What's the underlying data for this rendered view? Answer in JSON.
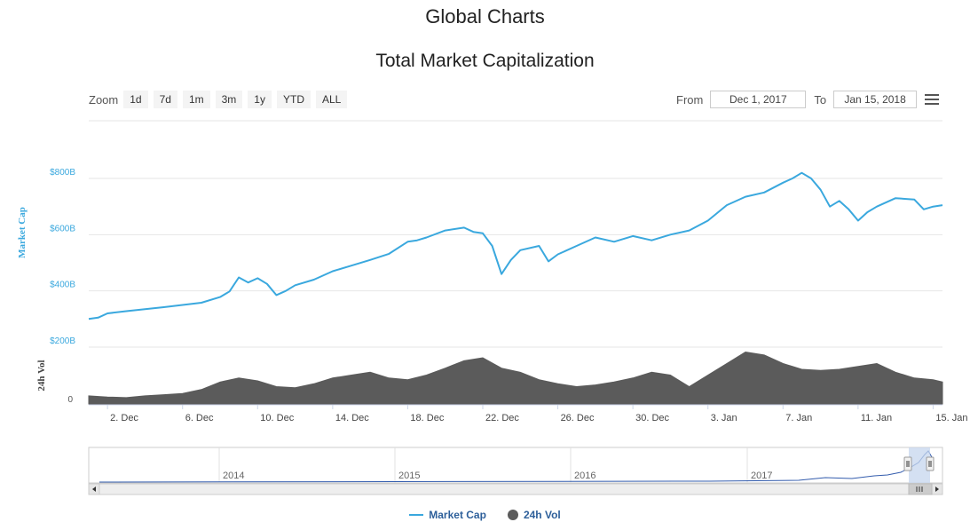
{
  "page": {
    "title": "Global Charts"
  },
  "zoom": {
    "label": "Zoom",
    "buttons": [
      "1d",
      "7d",
      "1m",
      "3m",
      "1y",
      "YTD",
      "ALL"
    ]
  },
  "range": {
    "from_label": "From",
    "from_value": "Dec 1, 2017",
    "to_label": "To",
    "to_value": "Jan 15, 2018"
  },
  "legend": {
    "market_cap": "Market Cap",
    "volume": "24h Vol"
  },
  "colors": {
    "market_cap": "#3aa8de",
    "volume": "#5b5b5b",
    "navigator_mask": "#c5d6ee"
  },
  "icons": {
    "menu": "hamburger-menu-icon"
  },
  "chart_data": {
    "type": "line",
    "title": "Total Market Capitalization",
    "market_cap_axis": {
      "label": "Market Cap",
      "ticks": [
        "$200B",
        "$400B",
        "$600B",
        "$800B"
      ],
      "tick_values": [
        200,
        400,
        600,
        800
      ],
      "unit": "billion USD"
    },
    "volume_axis": {
      "label": "24h Vol",
      "ticks": [
        "0"
      ]
    },
    "x_axis": {
      "tick_labels": [
        "2. Dec",
        "6. Dec",
        "10. Dec",
        "14. Dec",
        "18. Dec",
        "22. Dec",
        "26. Dec",
        "30. Dec",
        "3. Jan",
        "7. Jan",
        "11. Jan",
        "15. Jan"
      ],
      "tick_days": [
        1,
        5,
        9,
        13,
        17,
        21,
        25,
        29,
        33,
        37,
        41,
        45
      ],
      "range_days": [
        0,
        45.5
      ]
    },
    "market_cap_series": {
      "name": "Market Cap",
      "points": [
        [
          0,
          300
        ],
        [
          0.5,
          305
        ],
        [
          1,
          320
        ],
        [
          2,
          328
        ],
        [
          3,
          335
        ],
        [
          4,
          342
        ],
        [
          5,
          350
        ],
        [
          6,
          358
        ],
        [
          7,
          378
        ],
        [
          7.5,
          398
        ],
        [
          8,
          448
        ],
        [
          8.5,
          430
        ],
        [
          9,
          445
        ],
        [
          9.5,
          425
        ],
        [
          10,
          385
        ],
        [
          10.5,
          400
        ],
        [
          11,
          420
        ],
        [
          12,
          440
        ],
        [
          13,
          470
        ],
        [
          14,
          490
        ],
        [
          15,
          510
        ],
        [
          16,
          532
        ],
        [
          17,
          575
        ],
        [
          17.5,
          580
        ],
        [
          18,
          590
        ],
        [
          19,
          615
        ],
        [
          20,
          625
        ],
        [
          20.5,
          610
        ],
        [
          21,
          605
        ],
        [
          21.5,
          560
        ],
        [
          22,
          460
        ],
        [
          22.5,
          510
        ],
        [
          23,
          545
        ],
        [
          24,
          560
        ],
        [
          24.5,
          505
        ],
        [
          25,
          530
        ],
        [
          26,
          560
        ],
        [
          27,
          590
        ],
        [
          28,
          575
        ],
        [
          29,
          595
        ],
        [
          30,
          580
        ],
        [
          31,
          600
        ],
        [
          32,
          615
        ],
        [
          33,
          650
        ],
        [
          34,
          705
        ],
        [
          35,
          735
        ],
        [
          36,
          750
        ],
        [
          37,
          785
        ],
        [
          37.5,
          800
        ],
        [
          38,
          820
        ],
        [
          38.5,
          800
        ],
        [
          39,
          760
        ],
        [
          39.5,
          700
        ],
        [
          40,
          720
        ],
        [
          40.5,
          690
        ],
        [
          41,
          650
        ],
        [
          41.5,
          680
        ],
        [
          42,
          700
        ],
        [
          43,
          730
        ],
        [
          44,
          725
        ],
        [
          44.5,
          690
        ],
        [
          45,
          700
        ],
        [
          45.5,
          705
        ]
      ]
    },
    "volume_series": {
      "name": "24h Vol",
      "points": [
        [
          0,
          14
        ],
        [
          1,
          12
        ],
        [
          2,
          11
        ],
        [
          3,
          14
        ],
        [
          4,
          16
        ],
        [
          5,
          18
        ],
        [
          6,
          25
        ],
        [
          7,
          38
        ],
        [
          8,
          45
        ],
        [
          9,
          40
        ],
        [
          10,
          30
        ],
        [
          11,
          28
        ],
        [
          12,
          35
        ],
        [
          13,
          45
        ],
        [
          14,
          50
        ],
        [
          15,
          55
        ],
        [
          16,
          45
        ],
        [
          17,
          42
        ],
        [
          18,
          50
        ],
        [
          19,
          62
        ],
        [
          20,
          75
        ],
        [
          21,
          80
        ],
        [
          22,
          62
        ],
        [
          23,
          55
        ],
        [
          24,
          42
        ],
        [
          25,
          35
        ],
        [
          26,
          30
        ],
        [
          27,
          33
        ],
        [
          28,
          38
        ],
        [
          29,
          45
        ],
        [
          30,
          55
        ],
        [
          31,
          50
        ],
        [
          32,
          30
        ],
        [
          33,
          50
        ],
        [
          34,
          70
        ],
        [
          35,
          90
        ],
        [
          36,
          85
        ],
        [
          37,
          70
        ],
        [
          38,
          60
        ],
        [
          39,
          58
        ],
        [
          40,
          60
        ],
        [
          41,
          65
        ],
        [
          42,
          70
        ],
        [
          43,
          55
        ],
        [
          44,
          45
        ],
        [
          45,
          42
        ],
        [
          45.5,
          38
        ]
      ]
    },
    "navigator": {
      "year_labels": [
        "2014",
        "2015",
        "2016",
        "2017"
      ]
    }
  }
}
